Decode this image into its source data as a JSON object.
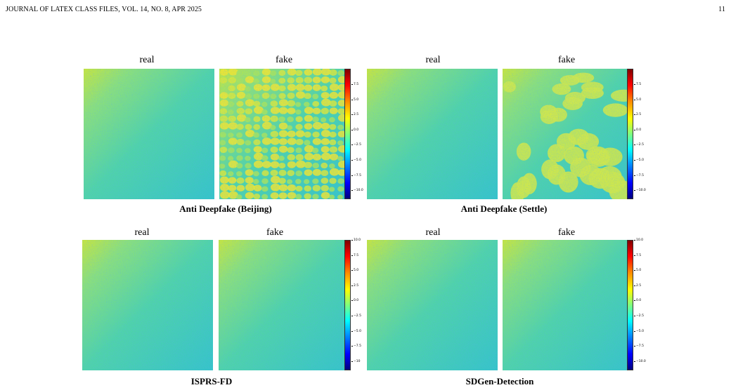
{
  "header": {
    "journal": "JOURNAL OF LATEX CLASS FILES, VOL. 14, NO. 8, APR 2025",
    "page": "11"
  },
  "colors": {
    "colormap": "jet"
  },
  "figure": {
    "groups": [
      {
        "caption": "Anti Deepfake (Beijing)",
        "panels": [
          {
            "label": "real",
            "pattern": "smooth"
          },
          {
            "label": "fake",
            "pattern": "cells"
          }
        ],
        "colorbar": {
          "ticks": [
            "7.5",
            "5.0",
            "2.5",
            "0.0",
            "−2.5",
            "−5.0",
            "−7.5",
            "−10.0"
          ]
        }
      },
      {
        "caption": "Anti Deepfake (Settle)",
        "panels": [
          {
            "label": "real",
            "pattern": "smooth"
          },
          {
            "label": "fake",
            "pattern": "blobs"
          }
        ],
        "colorbar": {
          "ticks": [
            "7.5",
            "5.0",
            "2.5",
            "0.0",
            "−2.5",
            "−5.0",
            "−7.5",
            "−10.0"
          ]
        }
      },
      {
        "caption": "ISPRS-FD",
        "panels": [
          {
            "label": "real",
            "pattern": "smooth"
          },
          {
            "label": "fake",
            "pattern": "smooth"
          }
        ],
        "colorbar": {
          "ticks": [
            "10.0",
            "7.5",
            "5.0",
            "2.5",
            "0.0",
            "−2.5",
            "−5.0",
            "−7.5",
            "−10"
          ]
        }
      },
      {
        "caption": "SDGen-Detection",
        "panels": [
          {
            "label": "real",
            "pattern": "smooth"
          },
          {
            "label": "fake",
            "pattern": "smooth"
          }
        ],
        "colorbar": {
          "ticks": [
            "10.0",
            "7.5",
            "5.0",
            "2.5",
            "0.0",
            "−2.5",
            "−5.0",
            "−7.5",
            "−10.0"
          ]
        }
      }
    ]
  }
}
